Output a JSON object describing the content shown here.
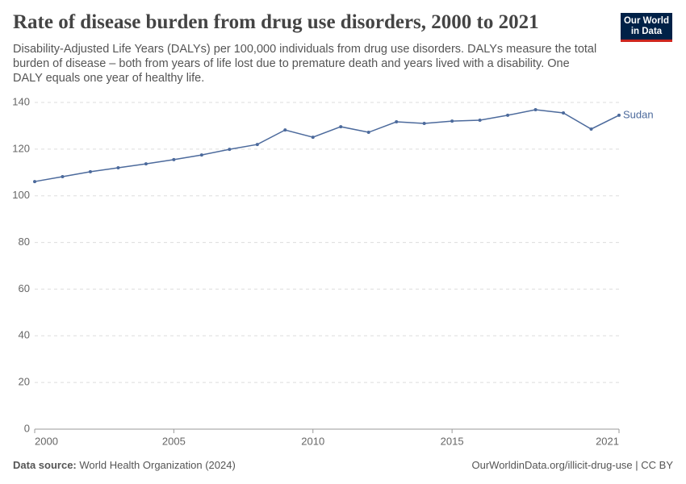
{
  "chart_data": {
    "type": "line",
    "title": "Rate of disease burden from drug use disorders, 2000 to 2021",
    "subtitle": "Disability-Adjusted Life Years (DALYs) per 100,000 individuals from drug use disorders. DALYs measure the total burden of disease – both from years of life lost due to premature death and years lived with a disability. One DALY equals one year of healthy life.",
    "x": [
      2000,
      2001,
      2002,
      2003,
      2004,
      2005,
      2006,
      2007,
      2008,
      2009,
      2010,
      2011,
      2012,
      2013,
      2014,
      2015,
      2016,
      2017,
      2018,
      2019,
      2020,
      2021
    ],
    "series": [
      {
        "name": "Sudan",
        "color": "#4c6a9c",
        "values": [
          106.1,
          108.2,
          110.3,
          112.0,
          113.7,
          115.5,
          117.5,
          119.9,
          122.0,
          128.2,
          125.1,
          129.6,
          127.2,
          131.7,
          131.0,
          132.0,
          132.4,
          134.5,
          136.9,
          135.5,
          128.6,
          134.5
        ]
      }
    ],
    "xlim": [
      2000,
      2021
    ],
    "xticks": [
      2000,
      2005,
      2010,
      2015,
      2021
    ],
    "ylim": [
      0,
      140
    ],
    "yticks": [
      0,
      20,
      40,
      60,
      80,
      100,
      120,
      140
    ],
    "grid": true
  },
  "logo": [
    "Our World",
    "in Data"
  ],
  "footer": {
    "source_label": "Data source:",
    "source": "World Health Organization (2024)",
    "url": "OurWorldinData.org/illicit-drug-use | CC BY"
  }
}
